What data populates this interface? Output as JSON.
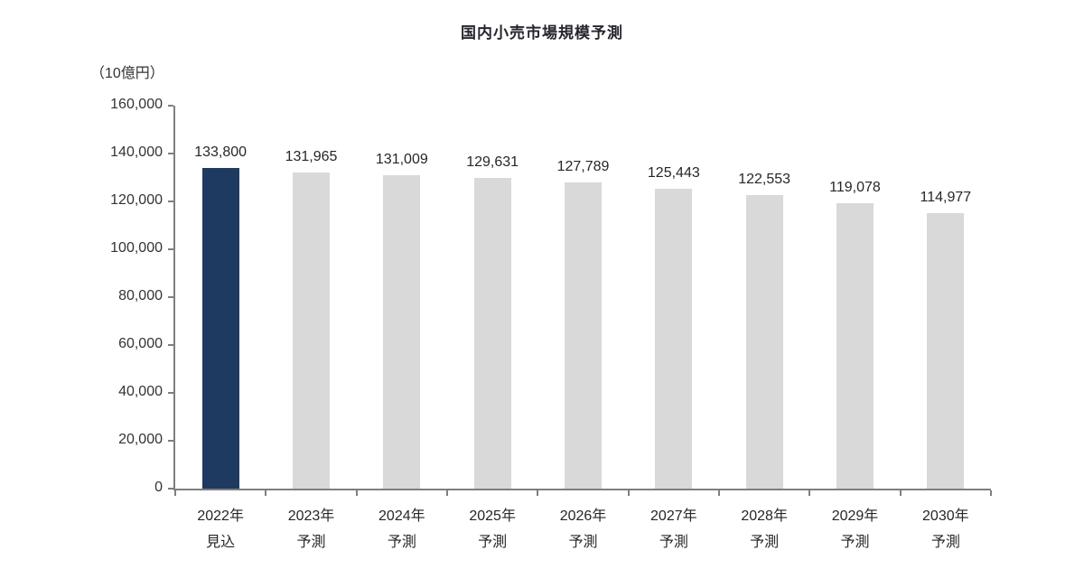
{
  "chart": {
    "title": "国内小売市場規模予測",
    "unit_label": "（10億円）"
  },
  "colors": {
    "highlight_bar": "#1f3a60",
    "forecast_bar": "#d9d9d9",
    "axis": "#7f7f7f",
    "title_text": "#26262e",
    "label_text": "#262626",
    "tick_text": "#333333",
    "background": "#ffffff"
  },
  "chart_data": {
    "type": "bar",
    "title": "国内小売市場規模予測",
    "ylabel": "（10億円）",
    "xlabel": "",
    "ylim": [
      0,
      160000
    ],
    "ytick_interval": 20000,
    "yticks": [
      0,
      20000,
      40000,
      60000,
      80000,
      100000,
      120000,
      140000,
      160000
    ],
    "ytick_labels": [
      "0",
      "20,000",
      "40,000",
      "60,000",
      "80,000",
      "100,000",
      "120,000",
      "140,000",
      "160,000"
    ],
    "grid": false,
    "legend": null,
    "categories": [
      "2022年 見込",
      "2023年 予測",
      "2024年 予測",
      "2025年 予測",
      "2026年 予測",
      "2027年 予測",
      "2028年 予測",
      "2029年 予測",
      "2030年 予測"
    ],
    "categories_line1": [
      "2022年",
      "2023年",
      "2024年",
      "2025年",
      "2026年",
      "2027年",
      "2028年",
      "2029年",
      "2030年"
    ],
    "categories_line2": [
      "見込",
      "予測",
      "予測",
      "予測",
      "予測",
      "予測",
      "予測",
      "予測",
      "予測"
    ],
    "values": [
      133800,
      131965,
      131009,
      129631,
      127789,
      125443,
      122553,
      119078,
      114977
    ],
    "value_labels": [
      "133,800",
      "131,965",
      "131,009",
      "129,631",
      "127,789",
      "125,443",
      "122,553",
      "119,078",
      "114,977"
    ],
    "bar_colors": [
      "#1f3a60",
      "#d9d9d9",
      "#d9d9d9",
      "#d9d9d9",
      "#d9d9d9",
      "#d9d9d9",
      "#d9d9d9",
      "#d9d9d9",
      "#d9d9d9"
    ]
  }
}
